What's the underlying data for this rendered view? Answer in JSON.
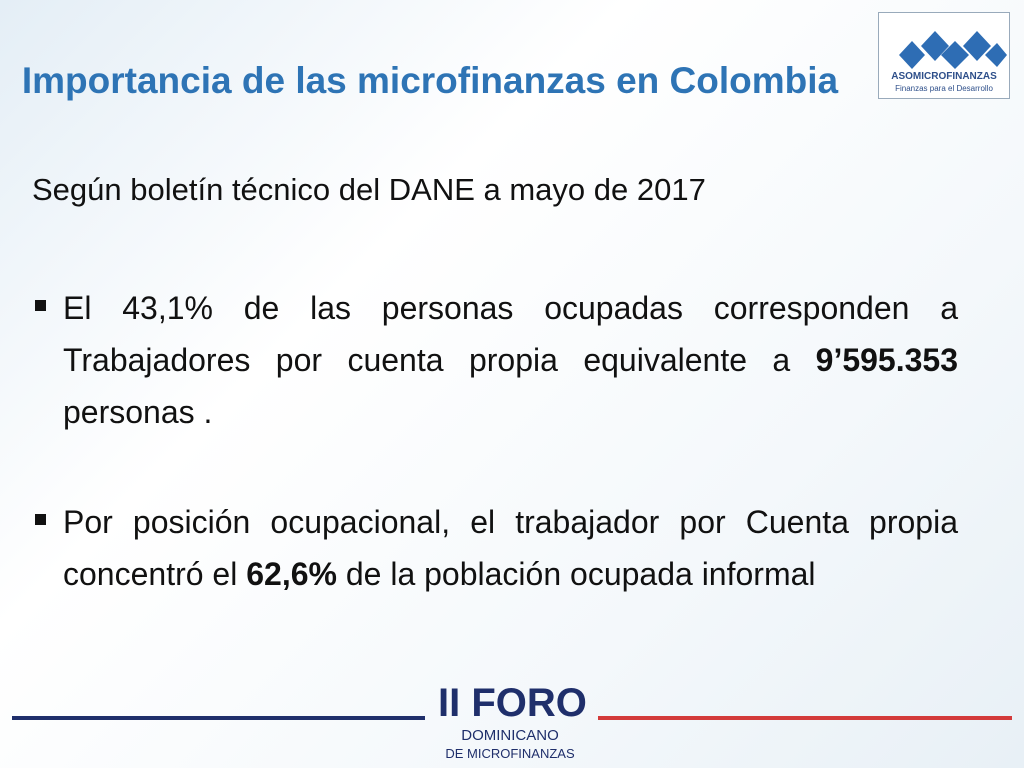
{
  "header": {
    "title": "Importancia de las microfinanzas en Colombia",
    "logo": {
      "name": "ASOMICROFINANZAS",
      "tagline": "Finanzas para el Desarrollo"
    }
  },
  "body": {
    "intro": "Según boletín técnico del DANE a mayo de 2017",
    "bullets": [
      {
        "segments": [
          {
            "text": "El 43,1% de las personas ocupadas corresponden a Trabajadores por cuenta propia equivalente a ",
            "bold": false
          },
          {
            "text": "9’595.353",
            "bold": true
          },
          {
            "text": " personas .",
            "bold": false
          }
        ]
      },
      {
        "segments": [
          {
            "text": "Por posición ocupacional, el trabajador por Cuenta propia concentró el ",
            "bold": false
          },
          {
            "text": "62,6%",
            "bold": true
          },
          {
            "text": " de la población ocupada informal",
            "bold": false
          }
        ]
      }
    ]
  },
  "footer": {
    "event": "II FORO",
    "subtitle_1": "DOMINICANO",
    "subtitle_2": "DE MICROFINANZAS"
  }
}
